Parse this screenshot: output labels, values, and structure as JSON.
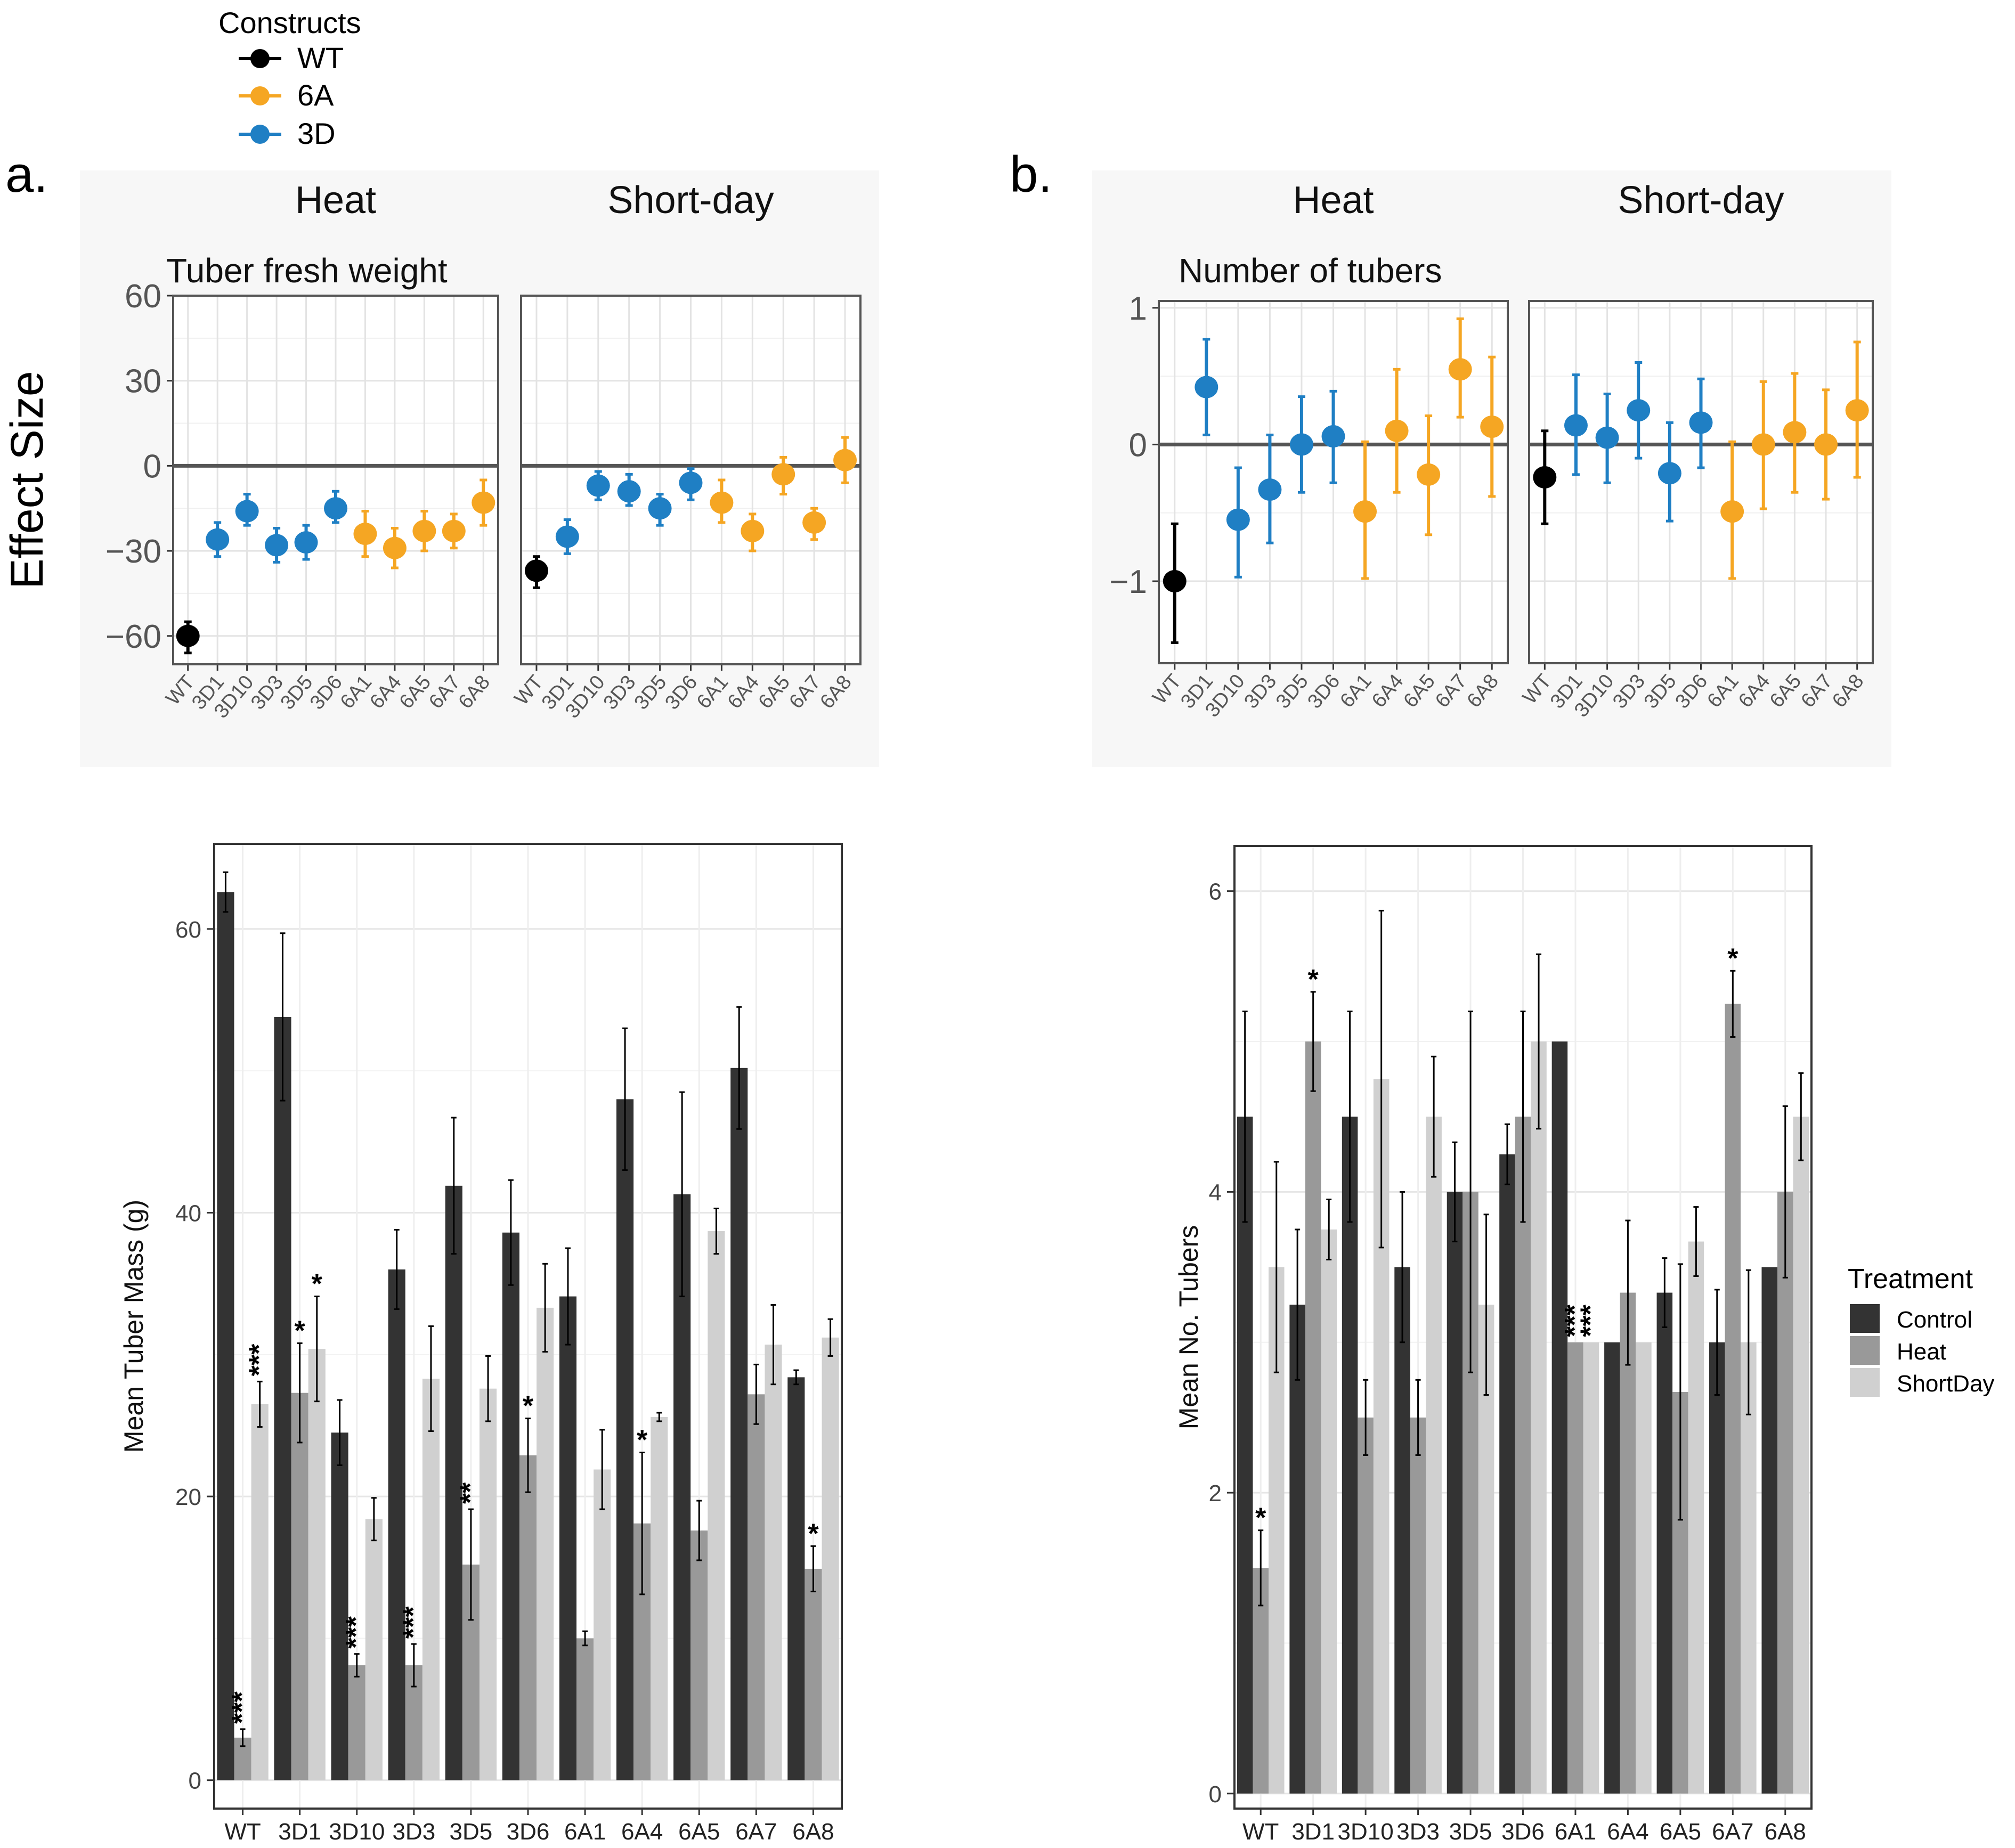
{
  "legend_constructs": {
    "title": "Constructs",
    "items": [
      {
        "name": "WT",
        "color": "#000000"
      },
      {
        "name": "6A",
        "color": "#f5a623"
      },
      {
        "name": "3D",
        "color": "#1f7fc4"
      }
    ]
  },
  "legend_treatment": {
    "title": "Treatment",
    "items": [
      {
        "name": "Control",
        "color": "#333333"
      },
      {
        "name": "Heat",
        "color": "#999999"
      },
      {
        "name": "ShortDay",
        "color": "#d0d0d0"
      }
    ]
  },
  "panel_a_label": "a.",
  "panel_b_label": "b.",
  "effect_ylabel": "Effect Size",
  "chart_data": [
    {
      "type": "scatter",
      "id": "a-effect",
      "title": "Tuber fresh weight",
      "facets": [
        "Heat",
        "Short-day"
      ],
      "ylabel": "Effect Size",
      "ylim": [
        -70,
        60
      ],
      "yticks": [
        60,
        30,
        0,
        -30,
        -60
      ],
      "ytick_labels": [
        "60",
        "30",
        "0",
        "−30",
        "−60"
      ],
      "categories": [
        "WT",
        "3D1",
        "3D10",
        "3D3",
        "3D5",
        "3D6",
        "6A1",
        "6A4",
        "6A5",
        "6A7",
        "6A8"
      ],
      "groups": [
        "WT",
        "3D",
        "3D",
        "3D",
        "3D",
        "3D",
        "6A",
        "6A",
        "6A",
        "6A",
        "6A"
      ],
      "series": [
        {
          "name": "Heat",
          "values": [
            -60,
            -26,
            -16,
            -28,
            -27,
            -15,
            -24,
            -29,
            -23,
            -23,
            -13
          ],
          "lower": [
            -66,
            -32,
            -21,
            -34,
            -33,
            -20,
            -32,
            -36,
            -30,
            -29,
            -21
          ],
          "upper": [
            -55,
            -20,
            -10,
            -22,
            -21,
            -9,
            -16,
            -22,
            -16,
            -17,
            -5
          ]
        },
        {
          "name": "Short-day",
          "values": [
            -37,
            -25,
            -7,
            -9,
            -15,
            -6,
            -13,
            -23,
            -3,
            -20,
            2
          ],
          "lower": [
            -43,
            -31,
            -12,
            -14,
            -21,
            -12,
            -20,
            -30,
            -10,
            -26,
            -6
          ],
          "upper": [
            -32,
            -19,
            -2,
            -3,
            -10,
            -1,
            -5,
            -17,
            3,
            -15,
            10
          ]
        }
      ]
    },
    {
      "type": "scatter",
      "id": "b-effect",
      "title": "Number of tubers",
      "facets": [
        "Heat",
        "Short-day"
      ],
      "ylabel": "",
      "ylim": [
        -1.6,
        1.05
      ],
      "yticks": [
        1,
        0,
        -1
      ],
      "ytick_labels": [
        "1",
        "0",
        "−1"
      ],
      "categories": [
        "WT",
        "3D1",
        "3D10",
        "3D3",
        "3D5",
        "3D6",
        "6A1",
        "6A4",
        "6A5",
        "6A7",
        "6A8"
      ],
      "groups": [
        "WT",
        "3D",
        "3D",
        "3D",
        "3D",
        "3D",
        "6A",
        "6A",
        "6A",
        "6A",
        "6A"
      ],
      "series": [
        {
          "name": "Heat",
          "values": [
            -1.0,
            0.42,
            -0.55,
            -0.33,
            0.0,
            0.06,
            -0.49,
            0.1,
            -0.22,
            0.55,
            0.13
          ],
          "lower": [
            -1.45,
            0.07,
            -0.97,
            -0.72,
            -0.35,
            -0.28,
            -0.98,
            -0.35,
            -0.66,
            0.2,
            -0.38
          ],
          "upper": [
            -0.58,
            0.77,
            -0.17,
            0.07,
            0.35,
            0.39,
            0.02,
            0.55,
            0.21,
            0.92,
            0.64
          ]
        },
        {
          "name": "Short-day",
          "values": [
            -0.24,
            0.14,
            0.05,
            0.25,
            -0.21,
            0.16,
            -0.49,
            0.0,
            0.09,
            0.0,
            0.25
          ],
          "lower": [
            -0.58,
            -0.22,
            -0.28,
            -0.1,
            -0.56,
            -0.17,
            -0.98,
            -0.47,
            -0.35,
            -0.4,
            -0.24
          ],
          "upper": [
            0.1,
            0.51,
            0.37,
            0.6,
            0.16,
            0.48,
            0.02,
            0.46,
            0.52,
            0.4,
            0.75
          ]
        }
      ]
    },
    {
      "type": "bar",
      "id": "a-bar",
      "ylabel": "Mean Tuber Mass (g)",
      "ylim": [
        -2,
        66
      ],
      "yticks": [
        0,
        20,
        40,
        60
      ],
      "categories": [
        "WT",
        "3D1",
        "3D10",
        "3D3",
        "3D5",
        "3D6",
        "6A1",
        "6A4",
        "6A5",
        "6A7",
        "6A8"
      ],
      "series": [
        {
          "name": "Control",
          "values": [
            62.6,
            53.8,
            24.5,
            36.0,
            41.9,
            38.6,
            34.1,
            48.0,
            41.3,
            50.2,
            28.4
          ],
          "errors": [
            1.4,
            5.9,
            2.3,
            2.8,
            4.8,
            3.7,
            3.4,
            5.0,
            7.2,
            4.3,
            0.5
          ],
          "stars": [
            "",
            "",
            "",
            "",
            "",
            "",
            "",
            "",
            "",
            "",
            ""
          ]
        },
        {
          "name": "Heat",
          "values": [
            3.0,
            27.3,
            8.1,
            8.1,
            15.2,
            22.9,
            10.0,
            18.1,
            17.6,
            27.2,
            14.9
          ],
          "errors": [
            0.6,
            3.5,
            0.8,
            1.5,
            3.9,
            2.6,
            0.5,
            5.0,
            2.1,
            2.1,
            1.6
          ],
          "stars": [
            "***",
            "*",
            "***",
            "***",
            "**",
            "*",
            "",
            "*",
            "",
            "",
            "*"
          ]
        },
        {
          "name": "ShortDay",
          "values": [
            26.5,
            30.4,
            18.4,
            28.3,
            27.6,
            33.3,
            21.9,
            25.6,
            38.7,
            30.7,
            31.2
          ],
          "errors": [
            1.6,
            3.7,
            1.5,
            3.7,
            2.3,
            3.1,
            2.8,
            0.3,
            1.6,
            2.8,
            1.3
          ],
          "stars": [
            "***",
            "*",
            "",
            "",
            "",
            "",
            "",
            "",
            "",
            "",
            ""
          ]
        }
      ]
    },
    {
      "type": "bar",
      "id": "b-bar",
      "ylabel": "Mean No. Tubers",
      "ylim": [
        -0.1,
        6.3
      ],
      "yticks": [
        0,
        2,
        4,
        6
      ],
      "categories": [
        "WT",
        "3D1",
        "3D10",
        "3D3",
        "3D5",
        "3D6",
        "6A1",
        "6A4",
        "6A5",
        "6A7",
        "6A8"
      ],
      "series": [
        {
          "name": "Control",
          "values": [
            4.5,
            3.25,
            4.5,
            3.5,
            4.0,
            4.25,
            5.0,
            3.0,
            3.33,
            3.0,
            3.5
          ],
          "errors": [
            0.7,
            0.5,
            0.7,
            0.5,
            0.33,
            0.2,
            0.0,
            0.0,
            0.23,
            0.35,
            0.0
          ],
          "stars": [
            "",
            "",
            "",
            "",
            "",
            "",
            "",
            "",
            "",
            "",
            ""
          ]
        },
        {
          "name": "Heat",
          "values": [
            1.5,
            5.0,
            2.5,
            2.5,
            4.0,
            4.5,
            3.0,
            3.33,
            2.67,
            5.25,
            4.0
          ],
          "errors": [
            0.25,
            0.33,
            0.25,
            0.25,
            1.2,
            0.7,
            0.0,
            0.48,
            0.85,
            0.22,
            0.57
          ],
          "stars": [
            "*",
            "*",
            "",
            "",
            "",
            "",
            "***",
            "",
            "",
            "*",
            ""
          ]
        },
        {
          "name": "ShortDay",
          "values": [
            3.5,
            3.75,
            4.75,
            4.5,
            3.25,
            5.0,
            3.0,
            3.0,
            3.67,
            3.0,
            4.5
          ],
          "errors": [
            0.7,
            0.2,
            1.12,
            0.4,
            0.6,
            0.58,
            0.0,
            0.0,
            0.23,
            0.48,
            0.29
          ],
          "stars": [
            "",
            "",
            "",
            "",
            "",
            "",
            "***",
            "",
            "",
            "",
            ""
          ]
        }
      ]
    }
  ]
}
